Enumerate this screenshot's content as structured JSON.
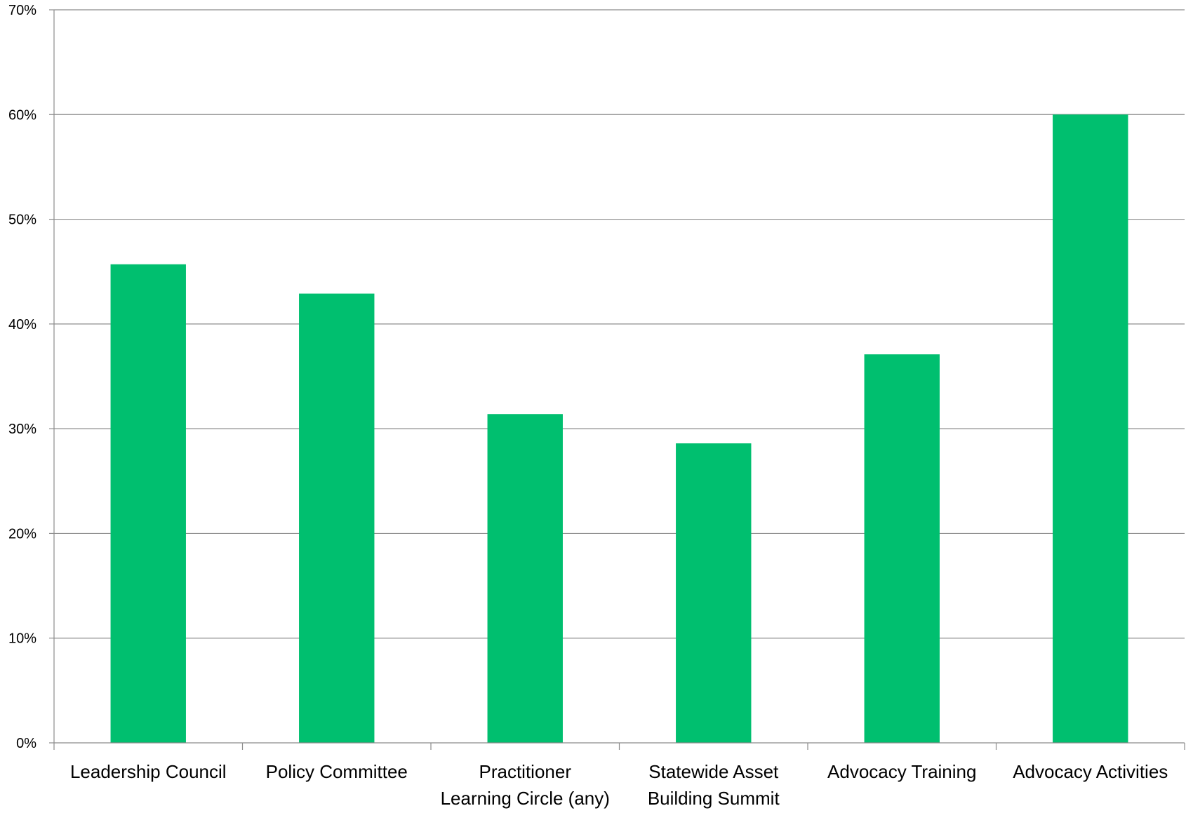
{
  "chart_data": {
    "type": "bar",
    "title": "",
    "xlabel": "",
    "ylabel": "",
    "categories": [
      [
        "Leadership Council"
      ],
      [
        "Policy Committee"
      ],
      [
        "Practitioner",
        "Learning Circle (any)"
      ],
      [
        "Statewide Asset",
        "Building Summit"
      ],
      [
        "Advocacy Training"
      ],
      [
        "Advocacy Activities"
      ]
    ],
    "values": [
      45.7,
      42.9,
      31.4,
      28.6,
      37.1,
      60.0
    ],
    "ylim": [
      0,
      70
    ],
    "yticks": [
      0,
      10,
      20,
      30,
      40,
      50,
      60,
      70
    ],
    "ytick_format": "%",
    "grid": true,
    "legend": "none",
    "bar_color": "#00bf6f"
  }
}
